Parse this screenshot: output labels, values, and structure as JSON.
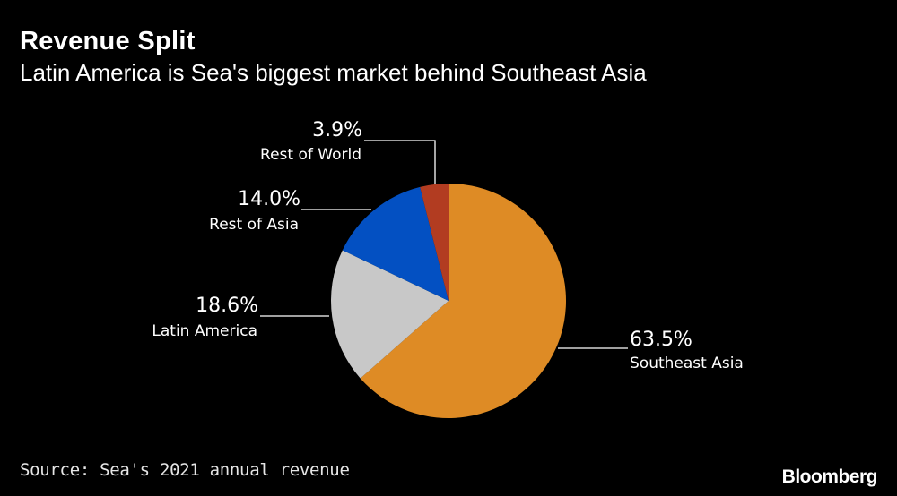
{
  "title": "Revenue Split",
  "subtitle": "Latin America is Sea's biggest market behind Southeast Asia",
  "source": "Source: Sea's 2021 annual revenue",
  "brand": "Bloomberg",
  "chart_data": {
    "type": "pie",
    "slices": [
      {
        "label": "Southeast Asia",
        "value": 63.5,
        "value_label": "63.5%",
        "color": "#DE8B25"
      },
      {
        "label": "Latin America",
        "value": 18.6,
        "value_label": "18.6%",
        "color": "#C8C8C8"
      },
      {
        "label": "Rest of Asia",
        "value": 14.0,
        "value_label": "14.0%",
        "color": "#0350C2"
      },
      {
        "label": "Rest of World",
        "value": 3.9,
        "value_label": "3.9%",
        "color": "#B23C21"
      }
    ],
    "start": "12 o'clock, clockwise",
    "legend": "none (direct labels with leader lines)"
  }
}
